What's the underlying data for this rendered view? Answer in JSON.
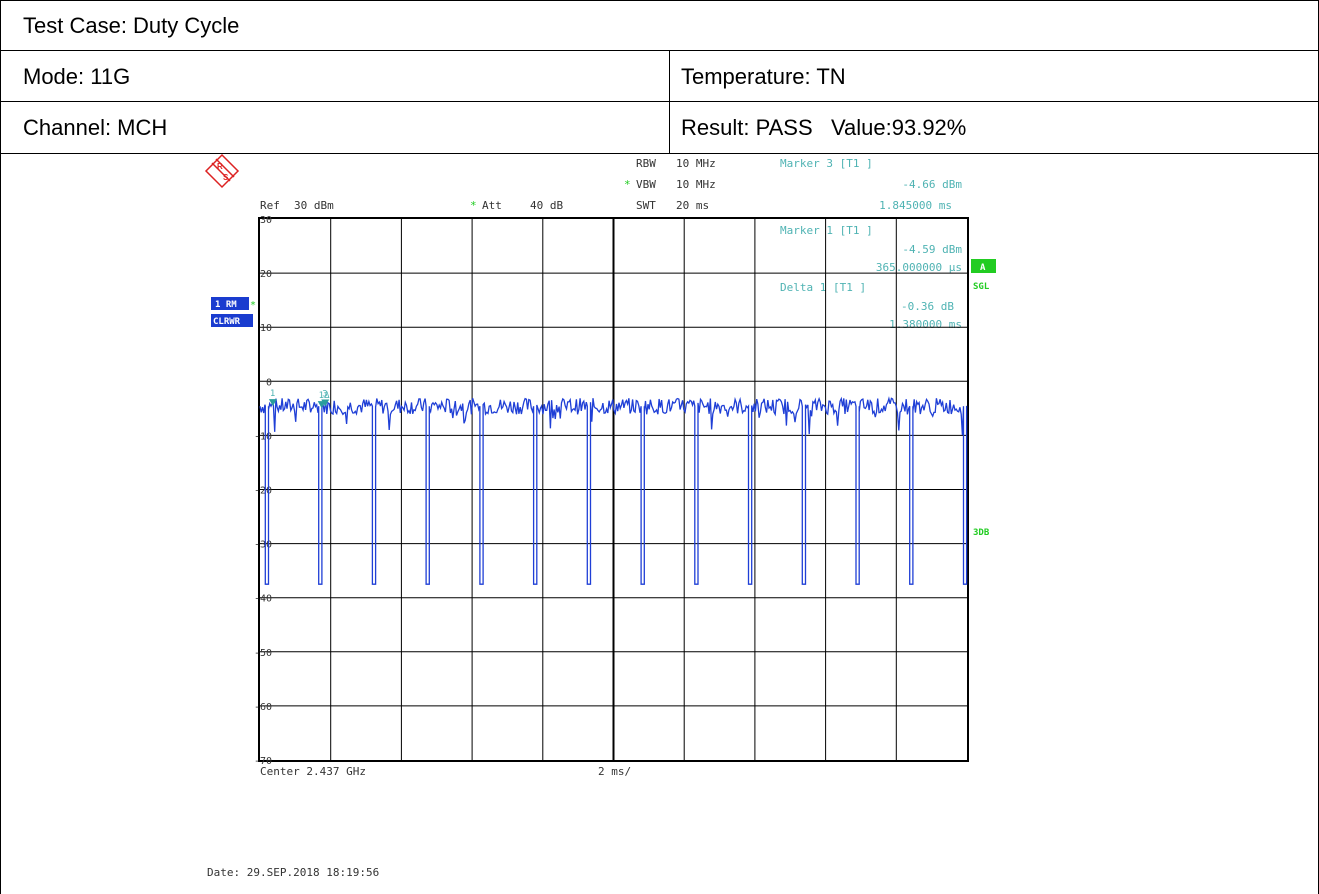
{
  "header": {
    "test_case": "Test Case: Duty Cycle",
    "mode": "Mode: 11G",
    "temperature": "Temperature: TN",
    "channel": "Channel: MCH",
    "result": "Result: PASS   Value:93.92%"
  },
  "analyzer": {
    "rbw_label": "RBW",
    "rbw_value": "10 MHz",
    "vbw_label": "VBW",
    "vbw_value": "10 MHz",
    "swt_label": "SWT",
    "swt_value": "20 ms",
    "ref_label": "Ref",
    "ref_value": "30 dBm",
    "att_label": "Att",
    "att_value": "40 dB",
    "star": "*",
    "trace_label_1": "1 RM",
    "trace_label_2": "CLRWR",
    "side_a": "A",
    "side_sgl": "SGL",
    "side_3db": "3DB",
    "center": "Center 2.437 GHz",
    "span_per_div": "2 ms/",
    "date": "Date: 29.SEP.2018  18:19:56",
    "marker3": {
      "title": "Marker 3 [T1 ]",
      "level": "-4.66 dBm",
      "time": "1.845000 ms"
    },
    "marker1": {
      "title": "Marker 1 [T1 ]",
      "level": "-4.59 dBm",
      "time": "365.000000 µs"
    },
    "delta1": {
      "title": "Delta 1 [T1 ]",
      "level": "-0.36 dB",
      "time": "1.380000 ms"
    },
    "marker_tags": [
      "1",
      "1Δ",
      "3"
    ]
  },
  "colors": {
    "trace": "#1f3fd6",
    "marker_text": "#4fb3b3",
    "green": "#22cc22",
    "badge_blue": "#1a3ccf",
    "grid": "#000000"
  },
  "chart_data": {
    "type": "line",
    "title": "",
    "xlabel": "",
    "ylabel": "",
    "x_unit": "ms",
    "xlim": [
      0,
      20
    ],
    "ylim": [
      -70,
      30
    ],
    "y_ticks": [
      30,
      20,
      10,
      0,
      -10,
      -20,
      -30,
      -40,
      -50,
      -60,
      -70
    ],
    "y_tick_labels": [
      "30",
      "20",
      "10",
      "0",
      "-10",
      "-20",
      "-30",
      "-40",
      "-50",
      "-60",
      "-70"
    ],
    "on_level_dbm": -4.6,
    "off_level_dbm": -37.5,
    "period_ms": 1.52,
    "off_starts_ms": [
      0.15,
      1.66,
      3.18,
      4.7,
      6.22,
      7.74,
      9.26,
      10.78,
      12.3,
      13.82,
      15.34,
      16.86,
      18.38,
      19.9
    ],
    "off_width_ms": 0.09,
    "markers": [
      {
        "id": "1",
        "x_ms": 0.365,
        "y_dbm": -4.59
      },
      {
        "id": "1Δ",
        "x_ms": 1.745,
        "y_dbm": -4.95
      },
      {
        "id": "3",
        "x_ms": 1.845,
        "y_dbm": -4.66
      }
    ],
    "grid": true
  }
}
